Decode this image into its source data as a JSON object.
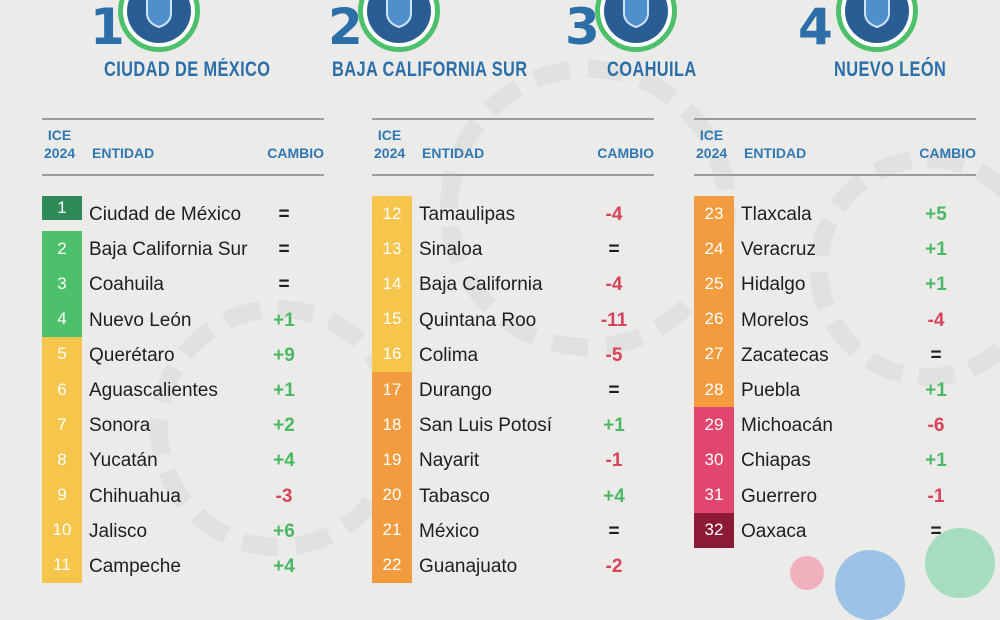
{
  "podium": [
    {
      "rank": "1",
      "name": "CIUDAD DE MÉXICO"
    },
    {
      "rank": "2",
      "name": "BAJA CALIFORNIA SUR"
    },
    {
      "rank": "3",
      "name": "COAHUILA"
    },
    {
      "rank": "4",
      "name": "NUEVO LEÓN"
    }
  ],
  "header": {
    "ice": "ICE",
    "year": "2024",
    "entity": "ENTIDAD",
    "change": "CAMBIO"
  },
  "colors": {
    "dark_green": "#2e8b57",
    "green": "#4cc06a",
    "yellow": "#f5c64b",
    "orange": "#f39c3f",
    "pink": "#e2466e",
    "maroon": "#8b1a36",
    "title_blue": "#2b6ea8",
    "up": "#4cb866",
    "down": "#d9435a"
  },
  "columns": [
    {
      "rows": [
        {
          "rank": "1",
          "name": "Ciudad de México",
          "change": "=",
          "tier": "dark_green"
        },
        {
          "rank": "2",
          "name": "Baja California Sur",
          "change": "=",
          "tier": "green"
        },
        {
          "rank": "3",
          "name": "Coahuila",
          "change": "=",
          "tier": "green"
        },
        {
          "rank": "4",
          "name": "Nuevo León",
          "change": "+1",
          "tier": "green"
        },
        {
          "rank": "5",
          "name": "Querétaro",
          "change": "+9",
          "tier": "yellow"
        },
        {
          "rank": "6",
          "name": "Aguascalientes",
          "change": "+1",
          "tier": "yellow"
        },
        {
          "rank": "7",
          "name": "Sonora",
          "change": "+2",
          "tier": "yellow"
        },
        {
          "rank": "8",
          "name": "Yucatán",
          "change": "+4",
          "tier": "yellow"
        },
        {
          "rank": "9",
          "name": "Chihuahua",
          "change": "-3",
          "tier": "yellow"
        },
        {
          "rank": "10",
          "name": "Jalisco",
          "change": "+6",
          "tier": "yellow"
        },
        {
          "rank": "11",
          "name": "Campeche",
          "change": "+4",
          "tier": "yellow"
        }
      ]
    },
    {
      "rows": [
        {
          "rank": "12",
          "name": "Tamaulipas",
          "change": "-4",
          "tier": "yellow"
        },
        {
          "rank": "13",
          "name": "Sinaloa",
          "change": "=",
          "tier": "yellow"
        },
        {
          "rank": "14",
          "name": "Baja California",
          "change": "-4",
          "tier": "yellow"
        },
        {
          "rank": "15",
          "name": "Quintana Roo",
          "change": "-11",
          "tier": "yellow"
        },
        {
          "rank": "16",
          "name": "Colima",
          "change": "-5",
          "tier": "yellow"
        },
        {
          "rank": "17",
          "name": "Durango",
          "change": "=",
          "tier": "orange"
        },
        {
          "rank": "18",
          "name": "San Luis Potosí",
          "change": "+1",
          "tier": "orange"
        },
        {
          "rank": "19",
          "name": "Nayarit",
          "change": "-1",
          "tier": "orange"
        },
        {
          "rank": "20",
          "name": "Tabasco",
          "change": "+4",
          "tier": "orange"
        },
        {
          "rank": "21",
          "name": "México",
          "change": "=",
          "tier": "orange"
        },
        {
          "rank": "22",
          "name": "Guanajuato",
          "change": "-2",
          "tier": "orange"
        }
      ]
    },
    {
      "rows": [
        {
          "rank": "23",
          "name": "Tlaxcala",
          "change": "+5",
          "tier": "orange"
        },
        {
          "rank": "24",
          "name": "Veracruz",
          "change": "+1",
          "tier": "orange"
        },
        {
          "rank": "25",
          "name": "Hidalgo",
          "change": "+1",
          "tier": "orange"
        },
        {
          "rank": "26",
          "name": "Morelos",
          "change": "-4",
          "tier": "orange"
        },
        {
          "rank": "27",
          "name": "Zacatecas",
          "change": "=",
          "tier": "orange"
        },
        {
          "rank": "28",
          "name": "Puebla",
          "change": "+1",
          "tier": "orange"
        },
        {
          "rank": "29",
          "name": "Michoacán",
          "change": "-6",
          "tier": "pink"
        },
        {
          "rank": "30",
          "name": "Chiapas",
          "change": "+1",
          "tier": "pink"
        },
        {
          "rank": "31",
          "name": "Guerrero",
          "change": "-1",
          "tier": "pink"
        },
        {
          "rank": "32",
          "name": "Oaxaca",
          "change": "=",
          "tier": "maroon"
        }
      ]
    }
  ]
}
